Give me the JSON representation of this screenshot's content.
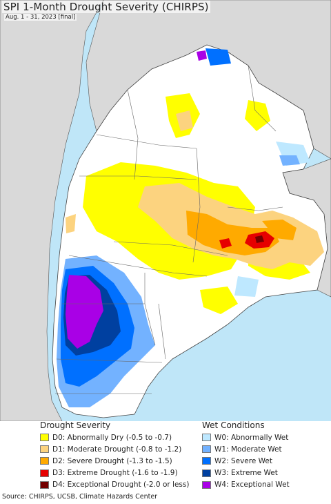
{
  "map": {
    "title": "SPI 1-Month Drought Severity (CHIRPS)",
    "subtitle": "Aug. 1 - 31, 2023 [final]"
  },
  "legend": {
    "drought": {
      "heading": "Drought Severity",
      "items": [
        {
          "label": "D0: Abnormally Dry (-0.5 to -0.7)",
          "color": "#ffff00"
        },
        {
          "label": "D1: Moderate Drought (-0.8 to -1.2)",
          "color": "#fcd37f"
        },
        {
          "label": "D2: Severe Drought (-1.3 to -1.5)",
          "color": "#ffaa00"
        },
        {
          "label": "D3: Extreme Drought (-1.6 to -1.9)",
          "color": "#e60000"
        },
        {
          "label": "D4: Exceptional Drought (-2.0 or less)",
          "color": "#730000"
        }
      ]
    },
    "wet": {
      "heading": "Wet Conditions",
      "items": [
        {
          "label": "W0: Abnormally Wet",
          "color": "#bee8ff"
        },
        {
          "label": "W1: Moderate Wet",
          "color": "#73b2ff"
        },
        {
          "label": "W2: Severe Wet",
          "color": "#0070ff"
        },
        {
          "label": "W3: Extreme Wet",
          "color": "#0040a0"
        },
        {
          "label": "W4: Exceptional Wet",
          "color": "#a900e6"
        }
      ]
    }
  },
  "footer": {
    "source": "Source: CHIRPS, UCSB, Climate Hazards Center"
  }
}
